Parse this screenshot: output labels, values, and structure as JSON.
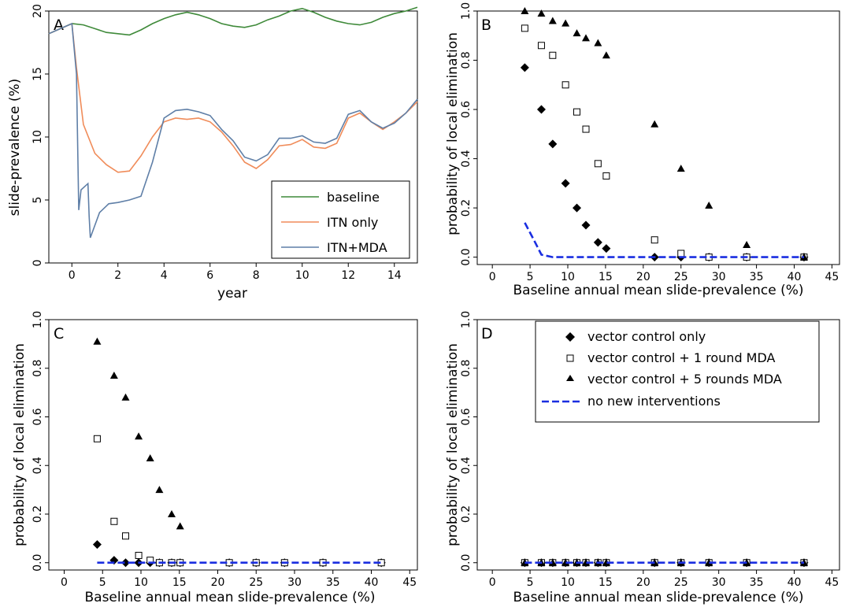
{
  "figure": {
    "panels": [
      {
        "letter": "A",
        "ylabel": "slide-prevalence (%)",
        "xlabel": "year",
        "legend_labels": [
          "baseline",
          "ITN only",
          "ITN+MDA"
        ]
      },
      {
        "letter": "B",
        "ylabel": "probability of local elimination",
        "xlabel": "Baseline annual mean slide-prevalence (%)"
      },
      {
        "letter": "C",
        "ylabel": "probability of local elimination",
        "xlabel": "Baseline annual mean slide-prevalence (%)"
      },
      {
        "letter": "D",
        "ylabel": "probability of local elimination",
        "xlabel": "Baseline annual mean slide-prevalence (%)",
        "legend_labels": [
          "vector control only",
          "vector control + 1 round MDA",
          "vector control + 5 rounds MDA",
          "no new interventions"
        ]
      }
    ]
  },
  "chart_data": [
    {
      "panel": "A",
      "type": "line",
      "xlabel": "year",
      "ylabel": "slide-prevalence (%)",
      "xlim": [
        -1,
        15
      ],
      "ylim": [
        0,
        20
      ],
      "xticks": [
        0,
        2,
        4,
        6,
        8,
        10,
        12,
        14
      ],
      "yticks": [
        0,
        5,
        10,
        15,
        20
      ],
      "legend_position": "bottom-right",
      "grid": false,
      "series": [
        {
          "name": "baseline",
          "color": "#3f8a3a",
          "x": [
            -1,
            -0.5,
            0,
            0.5,
            1,
            1.5,
            2,
            2.5,
            3,
            3.5,
            4,
            4.5,
            5,
            5.5,
            6,
            6.5,
            7,
            7.5,
            8,
            8.5,
            9,
            9.5,
            10,
            10.5,
            11,
            11.5,
            12,
            12.5,
            13,
            13.5,
            14,
            14.5,
            15
          ],
          "values": [
            18.2,
            18.6,
            19.0,
            18.9,
            18.6,
            18.3,
            18.2,
            18.1,
            18.5,
            19.0,
            19.4,
            19.7,
            19.9,
            19.7,
            19.4,
            19.0,
            18.8,
            18.7,
            18.9,
            19.3,
            19.6,
            20.0,
            20.2,
            19.9,
            19.5,
            19.2,
            19.0,
            18.9,
            19.1,
            19.5,
            19.8,
            20.0,
            20.3
          ]
        },
        {
          "name": "ITN only",
          "color": "#f08c5a",
          "x": [
            -1,
            -0.5,
            0,
            0.2,
            0.5,
            1,
            1.5,
            2,
            2.5,
            3,
            3.5,
            4,
            4.5,
            5,
            5.5,
            6,
            6.5,
            7,
            7.5,
            8,
            8.5,
            9,
            9.5,
            10,
            10.5,
            11,
            11.5,
            12,
            12.5,
            13,
            13.5,
            14,
            14.5,
            15
          ],
          "values": [
            18.2,
            18.6,
            19.0,
            15.5,
            11.0,
            8.7,
            7.8,
            7.2,
            7.3,
            8.5,
            10.0,
            11.2,
            11.5,
            11.4,
            11.5,
            11.2,
            10.4,
            9.3,
            8.0,
            7.5,
            8.2,
            9.3,
            9.4,
            9.8,
            9.2,
            9.1,
            9.5,
            11.5,
            11.9,
            11.2,
            10.6,
            11.2,
            11.9,
            12.8
          ]
        },
        {
          "name": "ITN+MDA",
          "color": "#5f7fa7",
          "x": [
            -1,
            -0.5,
            0,
            0.2,
            0.3,
            0.4,
            0.7,
            0.75,
            0.8,
            1.2,
            1.6,
            2,
            2.5,
            3,
            3.5,
            4,
            4.5,
            5,
            5.5,
            6,
            6.5,
            7,
            7.5,
            8,
            8.5,
            9,
            9.5,
            10,
            10.5,
            11,
            11.5,
            12,
            12.5,
            13,
            13.5,
            14,
            14.5,
            15
          ],
          "values": [
            18.2,
            18.6,
            19.0,
            15.0,
            4.2,
            5.8,
            6.3,
            3.7,
            2.0,
            4.0,
            4.7,
            4.8,
            5.0,
            5.3,
            8.0,
            11.5,
            12.1,
            12.2,
            12.0,
            11.7,
            10.6,
            9.7,
            8.4,
            8.1,
            8.6,
            9.9,
            9.9,
            10.1,
            9.6,
            9.5,
            9.9,
            11.8,
            12.1,
            11.2,
            10.7,
            11.1,
            11.9,
            13.0
          ]
        }
      ]
    },
    {
      "panel": "B",
      "type": "scatter",
      "xlabel": "Baseline annual mean slide-prevalence (%)",
      "ylabel": "probability of local elimination",
      "xlim": [
        -2,
        46
      ],
      "ylim": [
        -0.03,
        1.0
      ],
      "xticks": [
        0,
        5,
        10,
        15,
        20,
        25,
        30,
        35,
        40,
        45
      ],
      "yticks": [
        0.0,
        0.2,
        0.4,
        0.6,
        0.8,
        1.0
      ],
      "grid": false,
      "series": [
        {
          "name": "vector control only",
          "marker": "diamond",
          "x": [
            4.3,
            6.5,
            8.0,
            9.7,
            11.2,
            12.4,
            14.0,
            15.1,
            21.5,
            25.0,
            28.7,
            33.7,
            41.3
          ],
          "values": [
            0.77,
            0.6,
            0.46,
            0.3,
            0.2,
            0.13,
            0.06,
            0.035,
            0.0,
            0.0,
            0.0,
            0.0,
            0.0
          ]
        },
        {
          "name": "vector control + 1 round MDA",
          "marker": "open-square",
          "x": [
            4.3,
            6.5,
            8.0,
            9.7,
            11.2,
            12.4,
            14.0,
            15.1,
            21.5,
            25.0,
            28.7,
            33.7,
            41.3
          ],
          "values": [
            0.93,
            0.86,
            0.82,
            0.7,
            0.59,
            0.52,
            0.38,
            0.33,
            0.07,
            0.015,
            0.0,
            0.0,
            0.0
          ]
        },
        {
          "name": "vector control + 5 rounds MDA",
          "marker": "triangle",
          "x": [
            4.3,
            6.5,
            8.0,
            9.7,
            11.2,
            12.4,
            14.0,
            15.1,
            21.5,
            25.0,
            28.7,
            33.7,
            41.3
          ],
          "values": [
            1.0,
            0.99,
            0.96,
            0.95,
            0.91,
            0.89,
            0.87,
            0.82,
            0.54,
            0.36,
            0.21,
            0.05,
            0.0
          ]
        },
        {
          "name": "no new interventions",
          "marker": "dashed-line",
          "color": "#1a2ee0",
          "x": [
            4.3,
            5.5,
            6.5,
            8.0,
            15.0,
            25.0,
            41.3
          ],
          "values": [
            0.14,
            0.07,
            0.01,
            0.0,
            0.0,
            0.0,
            0.0
          ]
        }
      ]
    },
    {
      "panel": "C",
      "type": "scatter",
      "xlabel": "Baseline annual mean slide-prevalence (%)",
      "ylabel": "probability of local elimination",
      "xlim": [
        -2,
        46
      ],
      "ylim": [
        -0.03,
        1.0
      ],
      "xticks": [
        0,
        5,
        10,
        15,
        20,
        25,
        30,
        35,
        40,
        45
      ],
      "yticks": [
        0.0,
        0.2,
        0.4,
        0.6,
        0.8,
        1.0
      ],
      "grid": false,
      "series": [
        {
          "name": "vector control only",
          "marker": "diamond",
          "x": [
            4.3,
            6.5,
            8.0,
            9.7,
            11.2,
            12.4,
            14.0,
            15.1,
            21.5,
            25.0,
            28.7,
            33.7,
            41.3
          ],
          "values": [
            0.075,
            0.01,
            0.0,
            0.0,
            0.0,
            0.0,
            0.0,
            0.0,
            0.0,
            0.0,
            0.0,
            0.0,
            0.0
          ]
        },
        {
          "name": "vector control + 1 round MDA",
          "marker": "open-square",
          "x": [
            4.3,
            6.5,
            8.0,
            9.7,
            11.2,
            12.4,
            14.0,
            15.1,
            21.5,
            25.0,
            28.7,
            33.7,
            41.3
          ],
          "values": [
            0.51,
            0.17,
            0.11,
            0.03,
            0.01,
            0.0,
            0.0,
            0.0,
            0.0,
            0.0,
            0.0,
            0.0,
            0.0
          ]
        },
        {
          "name": "vector control + 5 rounds MDA",
          "marker": "triangle",
          "x": [
            4.3,
            6.5,
            8.0,
            9.7,
            11.2,
            12.4,
            14.0,
            15.1
          ],
          "values": [
            0.91,
            0.77,
            0.68,
            0.52,
            0.43,
            0.3,
            0.2,
            0.15
          ]
        },
        {
          "name": "no new interventions",
          "marker": "dashed-line",
          "color": "#1a2ee0",
          "x": [
            4.3,
            41.3
          ],
          "values": [
            0.0,
            0.0
          ]
        }
      ]
    },
    {
      "panel": "D",
      "type": "scatter",
      "xlabel": "Baseline annual mean slide-prevalence (%)",
      "ylabel": "probability of local elimination",
      "xlim": [
        -2,
        46
      ],
      "ylim": [
        -0.03,
        1.0
      ],
      "xticks": [
        0,
        5,
        10,
        15,
        20,
        25,
        30,
        35,
        40,
        45
      ],
      "yticks": [
        0.0,
        0.2,
        0.4,
        0.6,
        0.8,
        1.0
      ],
      "legend_position": "top-right",
      "grid": false,
      "series": [
        {
          "name": "vector control only",
          "marker": "diamond",
          "x": [
            4.3,
            6.5,
            8.0,
            9.7,
            11.2,
            12.4,
            14.0,
            15.1,
            21.5,
            25.0,
            28.7,
            33.7,
            41.3
          ],
          "values": [
            0,
            0,
            0,
            0,
            0,
            0,
            0,
            0,
            0,
            0,
            0,
            0,
            0
          ]
        },
        {
          "name": "vector control + 1 round MDA",
          "marker": "open-square",
          "x": [
            4.3,
            6.5,
            8.0,
            9.7,
            11.2,
            12.4,
            14.0,
            15.1,
            21.5,
            25.0,
            28.7,
            33.7,
            41.3
          ],
          "values": [
            0,
            0,
            0,
            0,
            0,
            0,
            0,
            0,
            0,
            0,
            0,
            0,
            0
          ]
        },
        {
          "name": "vector control + 5 rounds MDA",
          "marker": "triangle",
          "x": [
            4.3,
            6.5,
            8.0,
            9.7,
            11.2,
            12.4,
            14.0,
            15.1,
            21.5,
            25.0,
            28.7,
            33.7,
            41.3
          ],
          "values": [
            0,
            0,
            0,
            0,
            0,
            0,
            0,
            0,
            0,
            0,
            0,
            0,
            0
          ]
        },
        {
          "name": "no new interventions",
          "marker": "dashed-line",
          "color": "#1a2ee0",
          "x": [
            4.3,
            41.3
          ],
          "values": [
            0.0,
            0.0
          ]
        }
      ]
    }
  ]
}
